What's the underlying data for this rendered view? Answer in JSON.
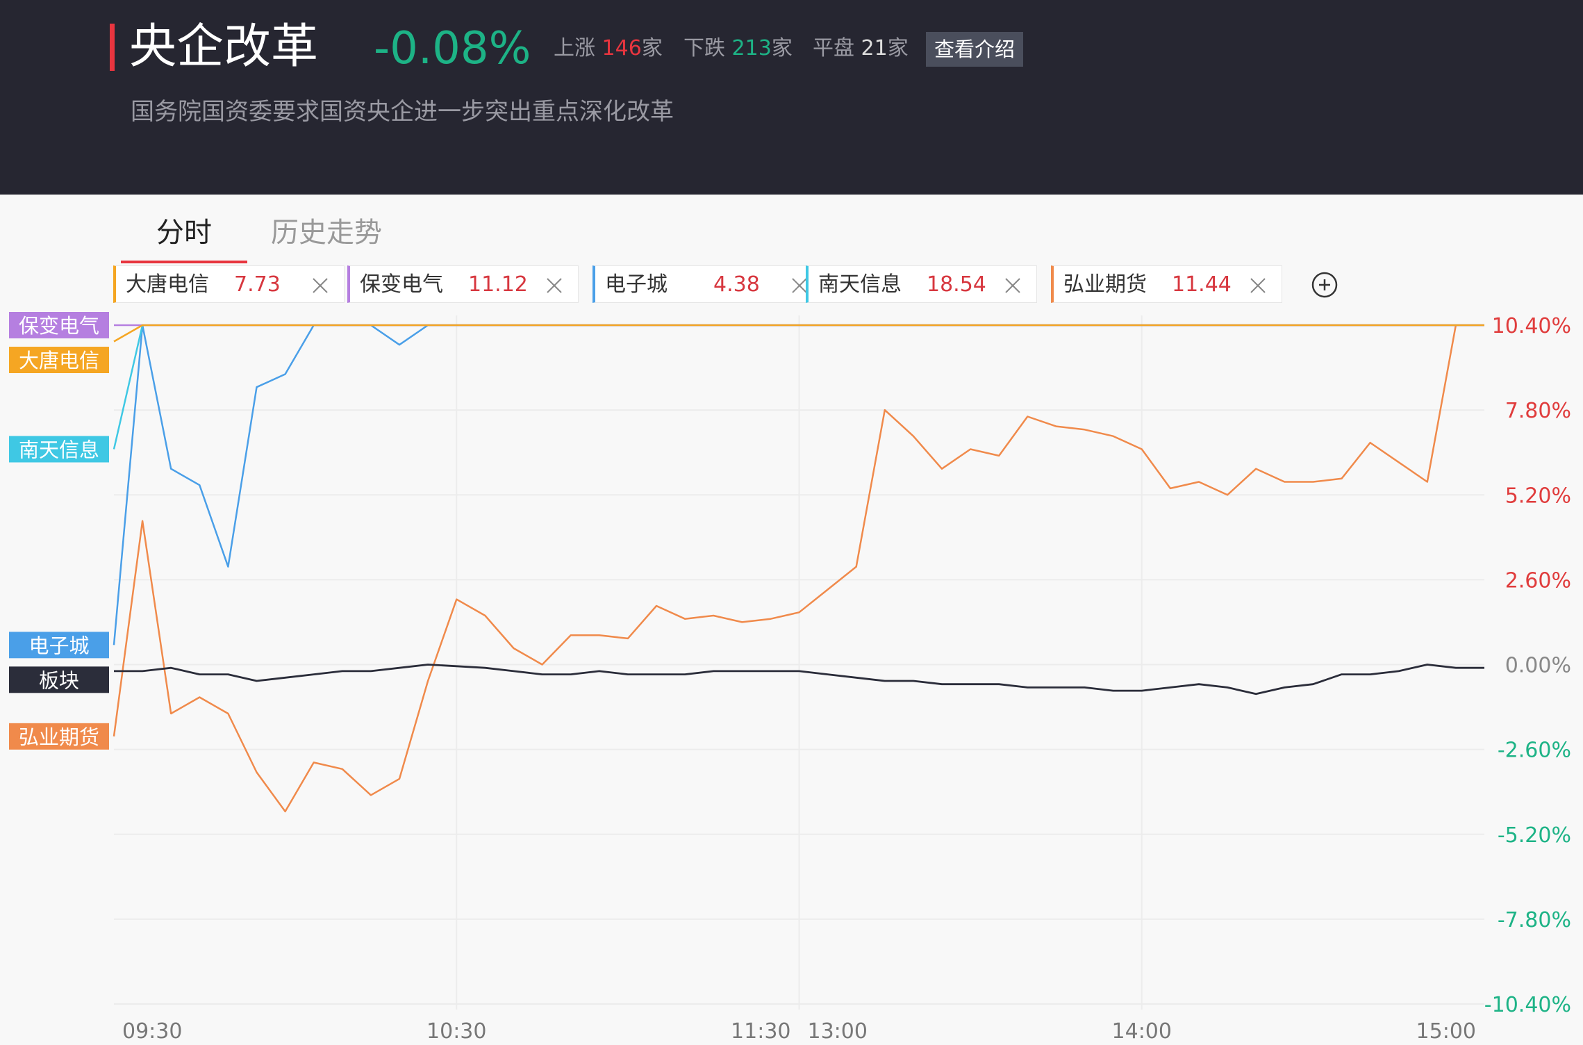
{
  "header": {
    "title": "央企改革",
    "change": "-0.08%",
    "up_label": "上涨",
    "up_count": 146,
    "down_label": "下跌",
    "down_count": 213,
    "flat_label": "平盘",
    "flat_count": 21,
    "unit": "家",
    "button": "查看介绍",
    "subtitle": "国务院国资委要求国资央企进一步突出重点深化改革"
  },
  "tabs": [
    "分时",
    "历史走势"
  ],
  "chart_data": {
    "type": "line",
    "categories": [
      "09:30",
      null,
      null,
      null,
      null,
      null,
      null,
      null,
      null,
      null,
      null,
      null,
      "10:30",
      null,
      null,
      null,
      null,
      null,
      null,
      null,
      null,
      null,
      null,
      null,
      "11:30",
      null,
      null,
      null,
      null,
      null,
      null,
      null,
      null,
      null,
      null,
      null,
      "14:00",
      null,
      null,
      null,
      null,
      null,
      null,
      null,
      null,
      null,
      null,
      null,
      "15:00"
    ],
    "break_label": "13:00",
    "ylim": [
      -10.4,
      10.4
    ],
    "yticks": [
      {
        "value": -10.4,
        "label": "-10.40%"
      },
      {
        "value": -7.8,
        "label": "-7.80%"
      },
      {
        "value": -5.2,
        "label": "-5.20%"
      },
      {
        "value": -2.6,
        "label": "-2.60%"
      },
      {
        "value": 0,
        "label": "0.00%"
      },
      {
        "value": 2.6,
        "label": "2.60%"
      },
      {
        "value": 5.2,
        "label": "5.20%"
      },
      {
        "value": 7.8,
        "label": "7.80%"
      },
      {
        "value": 10.4,
        "label": "10.40%"
      }
    ],
    "grid": true,
    "series": [
      {
        "name": "大唐电信",
        "price": 7.73,
        "color": "#f5a623",
        "values": [
          9.9,
          10.4,
          10.4,
          10.4,
          10.4,
          10.4,
          10.4,
          10.4,
          10.4,
          10.4,
          10.4,
          10.4,
          10.4,
          10.4,
          10.4,
          10.4,
          10.4,
          10.4,
          10.4,
          10.4,
          10.4,
          10.4,
          10.4,
          10.4,
          10.4,
          10.4,
          10.4,
          10.4,
          10.4,
          10.4,
          10.4,
          10.4,
          10.4,
          10.4,
          10.4,
          10.4,
          10.4,
          10.4,
          10.4,
          10.4,
          10.4,
          10.4,
          10.4,
          10.4,
          10.4,
          10.4,
          10.4,
          10.4,
          10.4
        ]
      },
      {
        "name": "保变电气",
        "price": 11.12,
        "color": "#b57fe0",
        "values": [
          10.4,
          10.4,
          10.4,
          10.4,
          10.4,
          10.4,
          10.4,
          10.4,
          10.4,
          10.4,
          10.4,
          10.4,
          10.4,
          10.4,
          10.4,
          10.4,
          10.4,
          10.4,
          10.4,
          10.4,
          10.4,
          10.4,
          10.4,
          10.4,
          10.4,
          10.4,
          10.4,
          10.4,
          10.4,
          10.4,
          10.4,
          10.4,
          10.4,
          10.4,
          10.4,
          10.4,
          10.4,
          10.4,
          10.4,
          10.4,
          10.4,
          10.4,
          10.4,
          10.4,
          10.4,
          10.4,
          10.4,
          10.4,
          10.4
        ]
      },
      {
        "name": "电子城",
        "price": 4.38,
        "color": "#4a9fe8",
        "values": [
          0.6,
          10.4,
          6.0,
          5.5,
          3.0,
          8.5,
          8.9,
          10.4,
          10.4,
          10.4,
          9.8,
          10.4,
          10.4,
          10.4,
          10.4,
          10.4,
          10.4,
          10.4,
          10.4,
          10.4,
          10.4,
          10.4,
          10.4,
          10.4,
          10.4,
          10.4,
          10.4,
          10.4,
          10.4,
          10.4,
          10.4,
          10.4,
          10.4,
          10.4,
          10.4,
          10.4,
          10.4,
          10.4,
          10.4,
          10.4,
          10.4,
          10.4,
          10.4,
          10.4,
          10.4,
          10.4,
          10.4,
          10.4,
          10.4
        ]
      },
      {
        "name": "南天信息",
        "price": 18.54,
        "color": "#3fc8e4",
        "values": [
          6.6,
          10.4,
          10.4,
          10.4,
          10.4,
          10.4,
          10.4,
          10.4,
          10.4,
          10.4,
          10.4,
          10.4,
          10.4,
          10.4,
          10.4,
          10.4,
          10.4,
          10.4,
          10.4,
          10.4,
          10.4,
          10.4,
          10.4,
          10.4,
          10.4,
          10.4,
          10.4,
          10.4,
          10.4,
          10.4,
          10.4,
          10.4,
          10.4,
          10.4,
          10.4,
          10.4,
          10.4,
          10.4,
          10.4,
          10.4,
          10.4,
          10.4,
          10.4,
          10.4,
          10.4,
          10.4,
          10.4,
          10.4,
          10.4
        ]
      },
      {
        "name": "弘业期货",
        "price": 11.44,
        "color": "#f08a4b",
        "values": [
          -2.2,
          4.4,
          -1.5,
          -1.0,
          -1.5,
          -3.3,
          -4.5,
          -3.0,
          -3.2,
          -4.0,
          -3.5,
          -0.5,
          2.0,
          1.5,
          0.5,
          0.0,
          0.9,
          0.9,
          0.8,
          1.8,
          1.4,
          1.5,
          1.3,
          1.4,
          1.6,
          2.3,
          3.0,
          7.8,
          7.0,
          6.0,
          6.6,
          6.4,
          7.6,
          7.3,
          7.2,
          7.0,
          6.6,
          5.4,
          5.6,
          5.2,
          6.0,
          5.6,
          5.6,
          5.7,
          6.8,
          6.2,
          5.6,
          10.4,
          10.4
        ]
      },
      {
        "name": "板块",
        "color": "#2b2d3a",
        "values": [
          -0.2,
          -0.2,
          -0.1,
          -0.3,
          -0.3,
          -0.5,
          -0.4,
          -0.3,
          -0.2,
          -0.2,
          -0.1,
          0.0,
          -0.05,
          -0.1,
          -0.2,
          -0.3,
          -0.3,
          -0.2,
          -0.3,
          -0.3,
          -0.3,
          -0.2,
          -0.2,
          -0.2,
          -0.2,
          -0.3,
          -0.4,
          -0.5,
          -0.5,
          -0.6,
          -0.6,
          -0.6,
          -0.7,
          -0.7,
          -0.7,
          -0.8,
          -0.8,
          -0.7,
          -0.6,
          -0.7,
          -0.9,
          -0.7,
          -0.6,
          -0.3,
          -0.3,
          -0.2,
          0.0,
          -0.1,
          -0.1
        ]
      }
    ]
  }
}
